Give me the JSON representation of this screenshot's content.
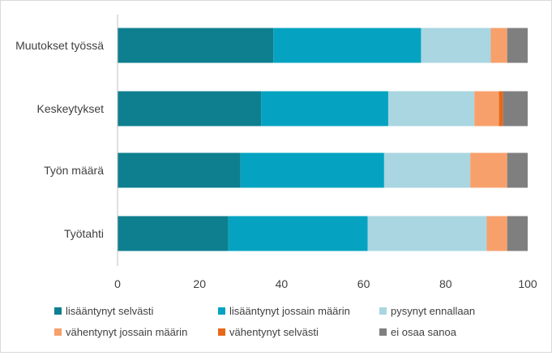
{
  "chart_data": {
    "type": "bar",
    "orientation": "horizontal",
    "stacked": true,
    "categories": [
      "Muutokset työssä",
      "Keskeytykset",
      "Työn määrä",
      "Työtahti"
    ],
    "series": [
      {
        "name": "lisääntynyt selvästi",
        "color": "#0e7f8f",
        "values": [
          38,
          35,
          30,
          27
        ]
      },
      {
        "name": "lisääntynyt jossain määrin",
        "color": "#05a3c1",
        "values": [
          36,
          31,
          35,
          34
        ]
      },
      {
        "name": "pysynyt ennallaan",
        "color": "#a9d6e0",
        "values": [
          17,
          21,
          21,
          29
        ]
      },
      {
        "name": "vähentynyt jossain määrin",
        "color": "#f7a06c",
        "values": [
          4,
          6,
          9,
          5
        ]
      },
      {
        "name": "vähentynyt selvästi",
        "color": "#e8681a",
        "values": [
          0,
          1,
          0,
          0
        ]
      },
      {
        "name": "ei osaa sanoa",
        "color": "#7f7f7f",
        "values": [
          5,
          6,
          5,
          5
        ]
      }
    ],
    "xlim": [
      0,
      100
    ],
    "xticks": [
      "0",
      "20",
      "40",
      "60",
      "80",
      "100"
    ],
    "grid": false,
    "legend_position": "bottom"
  }
}
